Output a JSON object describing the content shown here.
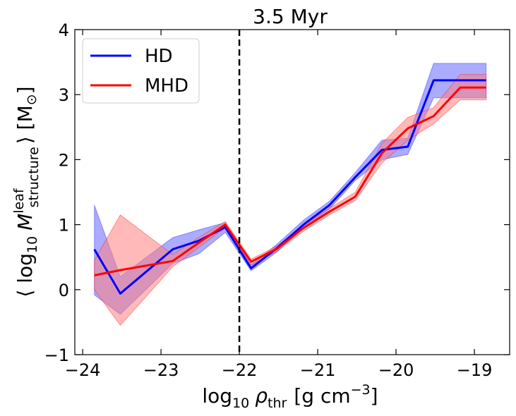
{
  "chart_data": {
    "type": "line",
    "title": "3.5 Myr",
    "xlabel": {
      "base": "log",
      "sub1": "10",
      "rho": "ρ",
      "sub2": "thr",
      "unit": "[g cm",
      "sup": "−3",
      "close": "]"
    },
    "ylabel": {
      "open": "⟨ log",
      "sub1": "10",
      "M": "M",
      "sup": "leaf",
      "sub2": "structure",
      "close": "⟩ [M",
      "msub": "⊙",
      "end": "]"
    },
    "xlim": [
      -24.1,
      -18.55
    ],
    "ylim": [
      -1,
      4
    ],
    "xticks": [
      -24,
      -23,
      -22,
      -21,
      -20,
      -19
    ],
    "xtick_labels": [
      "−24",
      "−23",
      "−22",
      "−21",
      "−20",
      "−19"
    ],
    "yticks": [
      -1,
      0,
      1,
      2,
      3,
      4
    ],
    "ytick_labels": [
      "−1",
      "0",
      "1",
      "2",
      "3",
      "4"
    ],
    "vline": {
      "x": -22.0,
      "style": "dashed",
      "color": "#000000"
    },
    "legend": {
      "location": "top-left"
    },
    "series": [
      {
        "name": "HD",
        "color": "#0000ff",
        "band_color": "#6666ff",
        "x": [
          -23.85,
          -23.52,
          -22.85,
          -22.52,
          -22.18,
          -21.85,
          -21.52,
          -21.18,
          -20.85,
          -20.52,
          -20.18,
          -19.85,
          -19.52,
          -19.18,
          -18.85
        ],
        "values": [
          0.62,
          -0.06,
          0.62,
          0.75,
          0.96,
          0.33,
          0.64,
          1.0,
          1.3,
          1.73,
          2.15,
          2.2,
          3.22,
          3.22,
          3.22
        ],
        "lower": [
          -0.08,
          -0.38,
          0.4,
          0.55,
          0.88,
          0.29,
          0.58,
          0.95,
          1.24,
          1.68,
          2.0,
          2.08,
          2.95,
          2.95,
          2.95
        ],
        "upper": [
          1.3,
          0.2,
          0.8,
          0.92,
          1.03,
          0.38,
          0.7,
          1.07,
          1.36,
          1.8,
          2.3,
          2.33,
          3.48,
          3.48,
          3.48
        ]
      },
      {
        "name": "MHD",
        "color": "#ff0000",
        "band_color": "#ff8080",
        "x": [
          -23.85,
          -23.52,
          -22.85,
          -22.52,
          -22.18,
          -21.85,
          -21.52,
          -21.18,
          -20.85,
          -20.52,
          -20.18,
          -19.85,
          -19.52,
          -19.18,
          -18.85
        ],
        "values": [
          0.22,
          0.3,
          0.44,
          0.72,
          1.0,
          0.43,
          0.63,
          0.95,
          1.2,
          1.43,
          2.1,
          2.48,
          2.67,
          3.11,
          3.11
        ],
        "lower": [
          0.0,
          -0.55,
          0.35,
          0.65,
          0.95,
          0.38,
          0.59,
          0.9,
          1.15,
          1.37,
          1.95,
          2.3,
          2.55,
          2.92,
          2.92
        ],
        "upper": [
          0.45,
          1.15,
          0.54,
          0.8,
          1.05,
          0.47,
          0.67,
          1.0,
          1.25,
          1.5,
          2.25,
          2.65,
          2.8,
          3.31,
          3.31
        ]
      }
    ]
  }
}
